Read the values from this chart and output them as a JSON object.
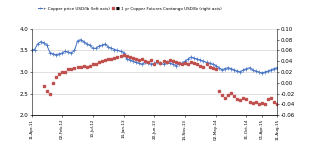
{
  "legend": [
    "+ Copper price USD/lb (left axis)",
    "■ 1 yr Copper Futures Contango USD/lb (right axis)"
  ],
  "blue_color": "#4472C4",
  "red_color": "#C0504D",
  "background": "#FFFFFF",
  "grid_color": "#C8C8C8",
  "left_ylim": [
    2.0,
    4.0
  ],
  "right_ylim": [
    -0.06,
    0.1
  ],
  "left_yticks": [
    2.0,
    2.5,
    3.0,
    3.5,
    4.0
  ],
  "right_yticks": [
    -0.06,
    -0.04,
    -0.02,
    0.0,
    0.02,
    0.04,
    0.06,
    0.08,
    0.1
  ],
  "blue_x": [
    0,
    1,
    2,
    3,
    4,
    5,
    6,
    7,
    8,
    9,
    10,
    11,
    12,
    13,
    14,
    15,
    16,
    17,
    18,
    19,
    20,
    21,
    22,
    23,
    24,
    25,
    26,
    27,
    28,
    29,
    30,
    31,
    32,
    33,
    34,
    35,
    36,
    37,
    38,
    39,
    40,
    41,
    42,
    43,
    44,
    45,
    46,
    47,
    48,
    49,
    50,
    51,
    52,
    53,
    54,
    55,
    56,
    57,
    58,
    59,
    60,
    61,
    62,
    63,
    64,
    65,
    66,
    67,
    68,
    69,
    70,
    71,
    72,
    73,
    74,
    75,
    76,
    77,
    78,
    79,
    80
  ],
  "blue_y": [
    3.5,
    3.52,
    3.65,
    3.7,
    3.68,
    3.62,
    3.45,
    3.42,
    3.4,
    3.42,
    3.44,
    3.48,
    3.46,
    3.44,
    3.5,
    3.72,
    3.75,
    3.7,
    3.65,
    3.62,
    3.55,
    3.55,
    3.6,
    3.62,
    3.65,
    3.58,
    3.55,
    3.52,
    3.5,
    3.48,
    3.45,
    3.3,
    3.28,
    3.25,
    3.22,
    3.2,
    3.18,
    3.22,
    3.2,
    3.18,
    3.2,
    3.22,
    3.2,
    3.18,
    3.22,
    3.2,
    3.18,
    3.15,
    3.18,
    3.2,
    3.25,
    3.3,
    3.35,
    3.32,
    3.3,
    3.28,
    3.25,
    3.22,
    3.2,
    3.18,
    3.15,
    3.1,
    3.05,
    3.08,
    3.1,
    3.08,
    3.05,
    3.02,
    3.0,
    3.05,
    3.08,
    3.1,
    3.05,
    3.02,
    3.0,
    2.98,
    3.0,
    3.02,
    3.05,
    3.08,
    3.1
  ],
  "red_x": [
    4,
    5,
    6,
    7,
    8,
    9,
    10,
    11,
    12,
    13,
    14,
    15,
    16,
    17,
    18,
    19,
    20,
    21,
    22,
    23,
    24,
    25,
    26,
    27,
    28,
    29,
    30,
    31,
    32,
    33,
    34,
    35,
    36,
    37,
    38,
    39,
    40,
    41,
    42,
    43,
    44,
    45,
    46,
    47,
    48,
    49,
    50,
    51,
    52,
    53,
    54,
    55,
    56,
    57,
    58,
    59,
    60,
    61,
    62,
    63,
    64,
    65,
    66,
    67,
    68,
    69,
    70,
    71,
    72,
    73,
    74,
    75,
    76,
    77,
    78,
    79,
    80
  ],
  "red_y": [
    -0.005,
    -0.015,
    -0.02,
    0.0,
    0.01,
    0.016,
    0.02,
    0.02,
    0.025,
    0.026,
    0.028,
    0.03,
    0.03,
    0.032,
    0.03,
    0.032,
    0.034,
    0.035,
    0.038,
    0.04,
    0.042,
    0.045,
    0.045,
    0.046,
    0.048,
    0.05,
    0.052,
    0.05,
    0.048,
    0.046,
    0.044,
    0.042,
    0.045,
    0.04,
    0.038,
    0.042,
    0.035,
    0.04,
    0.036,
    0.04,
    0.038,
    0.042,
    0.04,
    0.038,
    0.036,
    0.034,
    0.036,
    0.034,
    0.038,
    0.036,
    0.034,
    0.032,
    0.03,
    0.035,
    0.03,
    0.028,
    0.026,
    -0.015,
    -0.022,
    -0.028,
    -0.022,
    -0.018,
    -0.025,
    -0.03,
    -0.032,
    -0.028,
    -0.03,
    -0.035,
    -0.038,
    -0.035,
    -0.04,
    -0.038,
    -0.04,
    -0.03,
    -0.028,
    -0.035,
    -0.04
  ],
  "xtick_labels": [
    "11-Apr-11",
    "02-Feb-12",
    "10-Jul-12",
    "14-Jan-13",
    "20-Jun-13",
    "14-Nov-13",
    "02-May-14",
    "31-Oct-14",
    "01-Apr-15",
    "11-Aug-15"
  ],
  "xtick_pos": [
    0,
    10,
    20,
    30,
    40,
    50,
    60,
    70,
    75,
    80
  ],
  "figsize": [
    3.15,
    1.6
  ],
  "dpi": 100
}
